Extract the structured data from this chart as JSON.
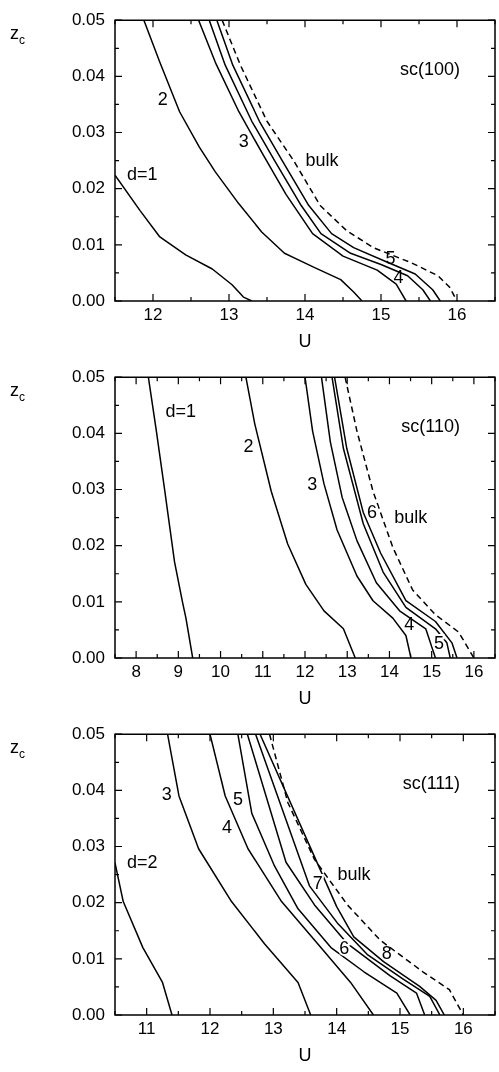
{
  "chart_data": [
    {
      "type": "line",
      "xlabel": "U",
      "ylabel": "z$_{c}$",
      "xlim": [
        11.5,
        16.5
      ],
      "ylim": [
        0,
        0.05
      ],
      "xticks": [
        {
          "value": 11.5,
          "label": null
        },
        12,
        {
          "value": 12.5,
          "label": null
        },
        13,
        {
          "value": 13.5,
          "label": null
        },
        14,
        {
          "value": 14.5,
          "label": null
        },
        15,
        {
          "value": 15.5,
          "label": null
        },
        16,
        {
          "value": 16.5,
          "label": null
        }
      ],
      "yticks": [
        {
          "value": 0,
          "label": "0.00"
        },
        {
          "value": 0.005,
          "label": null
        },
        {
          "value": 0.01,
          "label": "0.01"
        },
        {
          "value": 0.015,
          "label": null
        },
        {
          "value": 0.02,
          "label": "0.02"
        },
        {
          "value": 0.025,
          "label": null
        },
        {
          "value": 0.03,
          "label": "0.03"
        },
        {
          "value": 0.035,
          "label": null
        },
        {
          "value": 0.04,
          "label": "0.04"
        },
        {
          "value": 0.045,
          "label": null
        },
        {
          "value": 0.05,
          "label": "0.05"
        }
      ],
      "series": [
        {
          "name": "d=1",
          "color": "#000000",
          "x": [
            11.5,
            11.83,
            12.09,
            12.43,
            12.78,
            13.04,
            13.19,
            13.3
          ],
          "values": [
            0.0224,
            0.0161,
            0.0114,
            0.0082,
            0.0057,
            0.0029,
            0.0007,
            0
          ]
        },
        {
          "name": "2",
          "color": "#000000",
          "x": [
            11.88,
            12.09,
            12.35,
            12.61,
            12.82,
            13.13,
            13.43,
            13.73,
            14.12,
            14.47,
            14.64,
            14.75
          ],
          "values": [
            0.05,
            0.0425,
            0.0337,
            0.0274,
            0.023,
            0.0173,
            0.0123,
            0.0085,
            0.006,
            0.0038,
            0.0016,
            0
          ]
        },
        {
          "name": "3",
          "color": "#000000",
          "x": [
            12.6,
            12.82,
            13.13,
            13.45,
            13.75,
            14.1,
            14.5,
            14.95,
            15.2,
            15.33
          ],
          "values": [
            0.05,
            0.0425,
            0.0337,
            0.026,
            0.019,
            0.012,
            0.008,
            0.0055,
            0.003,
            0
          ]
        },
        {
          "name": "4",
          "color": "#000000",
          "x": [
            12.74,
            12.95,
            13.3,
            13.6,
            13.95,
            14.21,
            14.6,
            15.0,
            15.35,
            15.55,
            15.65
          ],
          "values": [
            0.05,
            0.042,
            0.032,
            0.025,
            0.017,
            0.012,
            0.0085,
            0.0065,
            0.0045,
            0.002,
            0
          ]
        },
        {
          "name": "5",
          "color": "#000000",
          "x": [
            12.84,
            13.05,
            13.4,
            13.7,
            14.05,
            14.35,
            14.64,
            15.1,
            15.45,
            15.68,
            15.78
          ],
          "values": [
            0.05,
            0.042,
            0.032,
            0.025,
            0.017,
            0.012,
            0.0095,
            0.0068,
            0.0048,
            0.002,
            0
          ]
        },
        {
          "name": "bulk",
          "color": "#000000",
          "line_style": "dashed",
          "x": [
            12.91,
            13.15,
            13.5,
            13.85,
            14.2,
            14.55,
            14.9,
            15.4,
            15.75,
            15.9,
            16.0
          ],
          "values": [
            0.05,
            0.042,
            0.032,
            0.025,
            0.017,
            0.0125,
            0.0095,
            0.0068,
            0.0045,
            0.0025,
            0
          ]
        }
      ],
      "annotations": [
        "sc(100)"
      ]
    },
    {
      "type": "line",
      "xlabel": "U",
      "ylabel": "z$_{c}$",
      "xlim": [
        7.5,
        16.5
      ],
      "ylim": [
        0,
        0.05
      ],
      "xticks": [
        {
          "value": 7.5,
          "label": null
        },
        8,
        {
          "value": 8.5,
          "label": null
        },
        9,
        {
          "value": 9.5,
          "label": null
        },
        10,
        {
          "value": 10.5,
          "label": null
        },
        11,
        {
          "value": 11.5,
          "label": null
        },
        12,
        {
          "value": 12.5,
          "label": null
        },
        13,
        {
          "value": 13.5,
          "label": null
        },
        14,
        {
          "value": 14.5,
          "label": null
        },
        15,
        {
          "value": 15.5,
          "label": null
        },
        16,
        {
          "value": 16.5,
          "label": null
        }
      ],
      "yticks": [
        {
          "value": 0,
          "label": "0.00"
        },
        {
          "value": 0.005,
          "label": null
        },
        {
          "value": 0.01,
          "label": "0.01"
        },
        {
          "value": 0.015,
          "label": null
        },
        {
          "value": 0.02,
          "label": "0.02"
        },
        {
          "value": 0.025,
          "label": null
        },
        {
          "value": 0.03,
          "label": "0.03"
        },
        {
          "value": 0.035,
          "label": null
        },
        {
          "value": 0.04,
          "label": "0.04"
        },
        {
          "value": 0.045,
          "label": null
        },
        {
          "value": 0.05,
          "label": "0.05"
        }
      ],
      "series": [
        {
          "name": "d=1",
          "color": "#000000",
          "x": [
            8.29,
            8.48,
            8.68,
            8.91,
            9.1,
            9.18,
            9.34
          ],
          "values": [
            0.05,
            0.0404,
            0.0297,
            0.0171,
            0.0099,
            0.0071,
            0
          ]
        },
        {
          "name": "2",
          "color": "#000000",
          "x": [
            10.6,
            10.81,
            11.2,
            11.59,
            12.02,
            12.45,
            12.91,
            13.19
          ],
          "values": [
            0.05,
            0.0417,
            0.0297,
            0.0203,
            0.0131,
            0.0084,
            0.0052,
            0
          ]
        },
        {
          "name": "3",
          "color": "#000000",
          "x": [
            12.0,
            12.18,
            12.45,
            12.76,
            13.23,
            13.61,
            14.08,
            14.39,
            14.51
          ],
          "values": [
            0.05,
            0.0404,
            0.031,
            0.0228,
            0.0146,
            0.0102,
            0.0071,
            0.004,
            0
          ]
        },
        {
          "name": "4",
          "color": "#000000",
          "x": [
            12.39,
            12.6,
            12.88,
            13.23,
            13.69,
            14.24,
            14.86,
            15.09
          ],
          "values": [
            0.05,
            0.0385,
            0.0286,
            0.0209,
            0.0134,
            0.0084,
            0.0052,
            0
          ]
        },
        {
          "name": "5",
          "color": "#000000",
          "x": [
            12.64,
            12.91,
            13.38,
            13.85,
            14.39,
            15.09,
            15.36,
            15.44
          ],
          "values": [
            0.05,
            0.0373,
            0.0239,
            0.0153,
            0.009,
            0.0052,
            0.0027,
            0
          ]
        },
        {
          "name": "6",
          "color": "#000000",
          "x": [
            12.7,
            12.99,
            13.38,
            13.79,
            14.39,
            15.09,
            15.48,
            15.6
          ],
          "values": [
            0.05,
            0.0373,
            0.0259,
            0.0187,
            0.0102,
            0.0065,
            0.0027,
            0
          ]
        },
        {
          "name": "bulk",
          "color": "#000000",
          "line_style": "dashed",
          "x": [
            12.95,
            13.23,
            13.61,
            14.08,
            14.55,
            15.09,
            15.64,
            16.0
          ],
          "values": [
            0.05,
            0.0404,
            0.0297,
            0.0197,
            0.0121,
            0.0077,
            0.0046,
            0
          ]
        }
      ],
      "annotations": [
        "sc(110)"
      ]
    },
    {
      "type": "line",
      "xlabel": "U",
      "ylabel": "z$_{c}$",
      "xlim": [
        10.5,
        16.5
      ],
      "ylim": [
        0,
        0.05
      ],
      "xticks": [
        {
          "value": 10.5,
          "label": null
        },
        11,
        {
          "value": 11.5,
          "label": null
        },
        12,
        {
          "value": 12.5,
          "label": null
        },
        13,
        {
          "value": 13.5,
          "label": null
        },
        14,
        {
          "value": 14.5,
          "label": null
        },
        15,
        {
          "value": 15.5,
          "label": null
        },
        16,
        {
          "value": 16.5,
          "label": null
        }
      ],
      "yticks": [
        {
          "value": 0,
          "label": "0.00"
        },
        {
          "value": 0.005,
          "label": null
        },
        {
          "value": 0.01,
          "label": "0.01"
        },
        {
          "value": 0.015,
          "label": null
        },
        {
          "value": 0.02,
          "label": "0.02"
        },
        {
          "value": 0.025,
          "label": null
        },
        {
          "value": 0.03,
          "label": "0.03"
        },
        {
          "value": 0.035,
          "label": null
        },
        {
          "value": 0.04,
          "label": "0.04"
        },
        {
          "value": 0.045,
          "label": null
        },
        {
          "value": 0.05,
          "label": "0.05"
        }
      ],
      "series": [
        {
          "name": "d=2",
          "color": "#000000",
          "x": [
            10.5,
            10.63,
            10.94,
            11.25,
            11.4
          ],
          "values": [
            0.0271,
            0.0202,
            0.012,
            0.0058,
            0
          ]
        },
        {
          "name": "3",
          "color": "#000000",
          "x": [
            11.33,
            11.51,
            11.82,
            12.34,
            12.86,
            13.39,
            13.59
          ],
          "values": [
            0.05,
            0.039,
            0.0296,
            0.0202,
            0.0127,
            0.0058,
            0
          ]
        },
        {
          "name": "4",
          "color": "#000000",
          "x": [
            12.0,
            12.24,
            12.6,
            13.13,
            13.7,
            14.22,
            14.58
          ],
          "values": [
            0.05,
            0.039,
            0.0296,
            0.0202,
            0.0127,
            0.0058,
            0
          ]
        },
        {
          "name": "5",
          "color": "#000000",
          "x": [
            12.44,
            12.66,
            13.02,
            13.39,
            13.91,
            14.43,
            14.95,
            15.16
          ],
          "values": [
            0.05,
            0.0359,
            0.0265,
            0.0189,
            0.012,
            0.0077,
            0.0039,
            0
          ]
        },
        {
          "name": "6",
          "color": "#000000",
          "x": [
            12.59,
            13.2,
            13.65,
            14.17,
            14.84,
            15.26,
            15.39
          ],
          "values": [
            0.05,
            0.0272,
            0.0196,
            0.0127,
            0.007,
            0.0039,
            0
          ]
        },
        {
          "name": "7",
          "color": "#000000",
          "x": [
            12.72,
            13.57,
            14.01,
            14.48,
            15.05,
            15.47,
            15.63
          ],
          "values": [
            0.05,
            0.023,
            0.0164,
            0.0108,
            0.0064,
            0.0033,
            0
          ]
        },
        {
          "name": "8",
          "color": "#000000",
          "x": [
            12.79,
            14.0,
            14.27,
            14.74,
            15.31,
            15.57,
            15.7
          ],
          "values": [
            0.05,
            0.0193,
            0.0139,
            0.0095,
            0.0051,
            0.0026,
            0
          ]
        },
        {
          "name": "bulk",
          "color": "#000000",
          "line_style": "dashed",
          "x": [
            12.94,
            13.23,
            13.65,
            14.17,
            14.69,
            15.36,
            15.78,
            16.0
          ],
          "values": [
            0.05,
            0.0378,
            0.0277,
            0.0196,
            0.0133,
            0.0077,
            0.0045,
            0
          ]
        }
      ],
      "annotations": [
        "sc(111)"
      ]
    }
  ]
}
